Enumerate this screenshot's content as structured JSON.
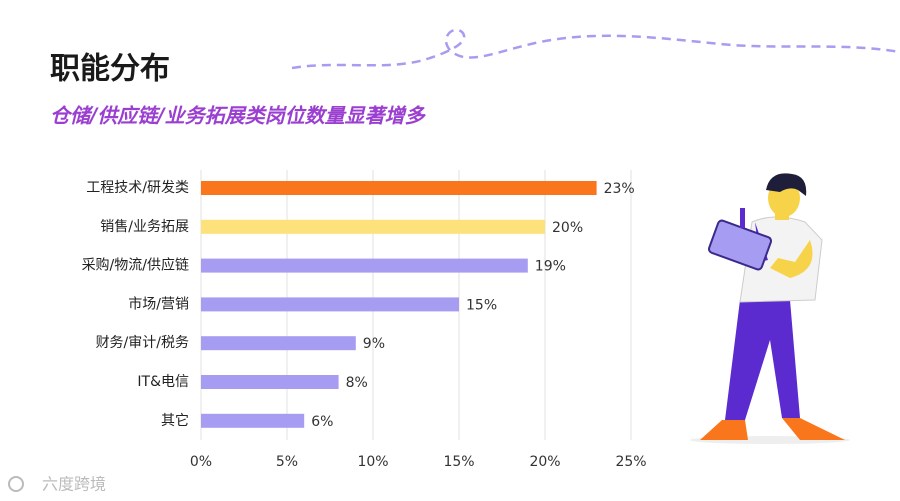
{
  "chart_data": {
    "type": "bar",
    "orientation": "horizontal",
    "title": "职能分布",
    "subtitle": "仓储/供应链/业务拓展类岗位数量显著增多",
    "categories": [
      "工程技术/研发类",
      "销售/业务拓展",
      "采购/物流/供应链",
      "市场/营销",
      "财务/审计/税务",
      "IT&电信",
      "其它"
    ],
    "values": [
      23,
      20,
      19,
      15,
      9,
      8,
      6
    ],
    "value_labels": [
      "23%",
      "20%",
      "19%",
      "15%",
      "9%",
      "8%",
      "6%"
    ],
    "colors": [
      "#fa761c",
      "#fde17a",
      "#a69cf2",
      "#a69cf2",
      "#a69cf2",
      "#a69cf2",
      "#a69cf2"
    ],
    "xlim": [
      0,
      25
    ],
    "xticks": [
      {
        "value": 0,
        "label": "0%"
      },
      {
        "value": 5,
        "label": "5%"
      },
      {
        "value": 10,
        "label": "10%"
      },
      {
        "value": 15,
        "label": "15%"
      },
      {
        "value": 20,
        "label": "20%"
      },
      {
        "value": 25,
        "label": "25%"
      }
    ],
    "grid": true,
    "watermark": "六度跨境"
  }
}
